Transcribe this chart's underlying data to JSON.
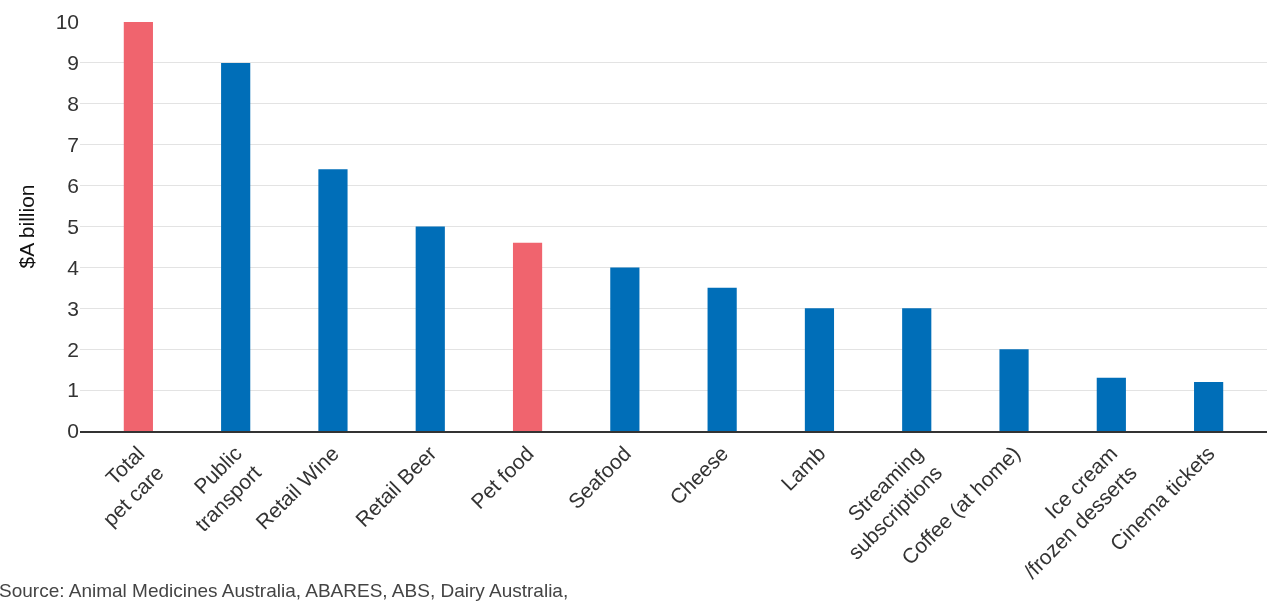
{
  "chart_data": {
    "type": "bar",
    "ylabel": "$A billion",
    "categories": [
      "Total\npet care",
      "Public\ntransport",
      "Retail Wine",
      "Retail Beer",
      "Pet food",
      "Seafood",
      "Cheese",
      "Lamb",
      "Streaming\nsubscriptions",
      "Coffee (at home)",
      "Ice cream\n/frozen desserts",
      "Cinema tickets"
    ],
    "values": [
      10,
      9,
      6.4,
      5,
      4.6,
      4,
      3.5,
      3,
      3,
      2,
      1.3,
      1.2
    ],
    "colors": [
      "#f0646e",
      "#006eb8",
      "#006eb8",
      "#006eb8",
      "#f0646e",
      "#006eb8",
      "#006eb8",
      "#006eb8",
      "#006eb8",
      "#006eb8",
      "#006eb8",
      "#006eb8"
    ],
    "ylim": [
      0,
      10
    ],
    "yticks": [
      0,
      1,
      2,
      3,
      4,
      5,
      6,
      7,
      8,
      9,
      10
    ],
    "grid": "y",
    "annotations": [
      "Source: Animal Medicines Australia, ABARES, ABS, Dairy Australia,"
    ]
  }
}
